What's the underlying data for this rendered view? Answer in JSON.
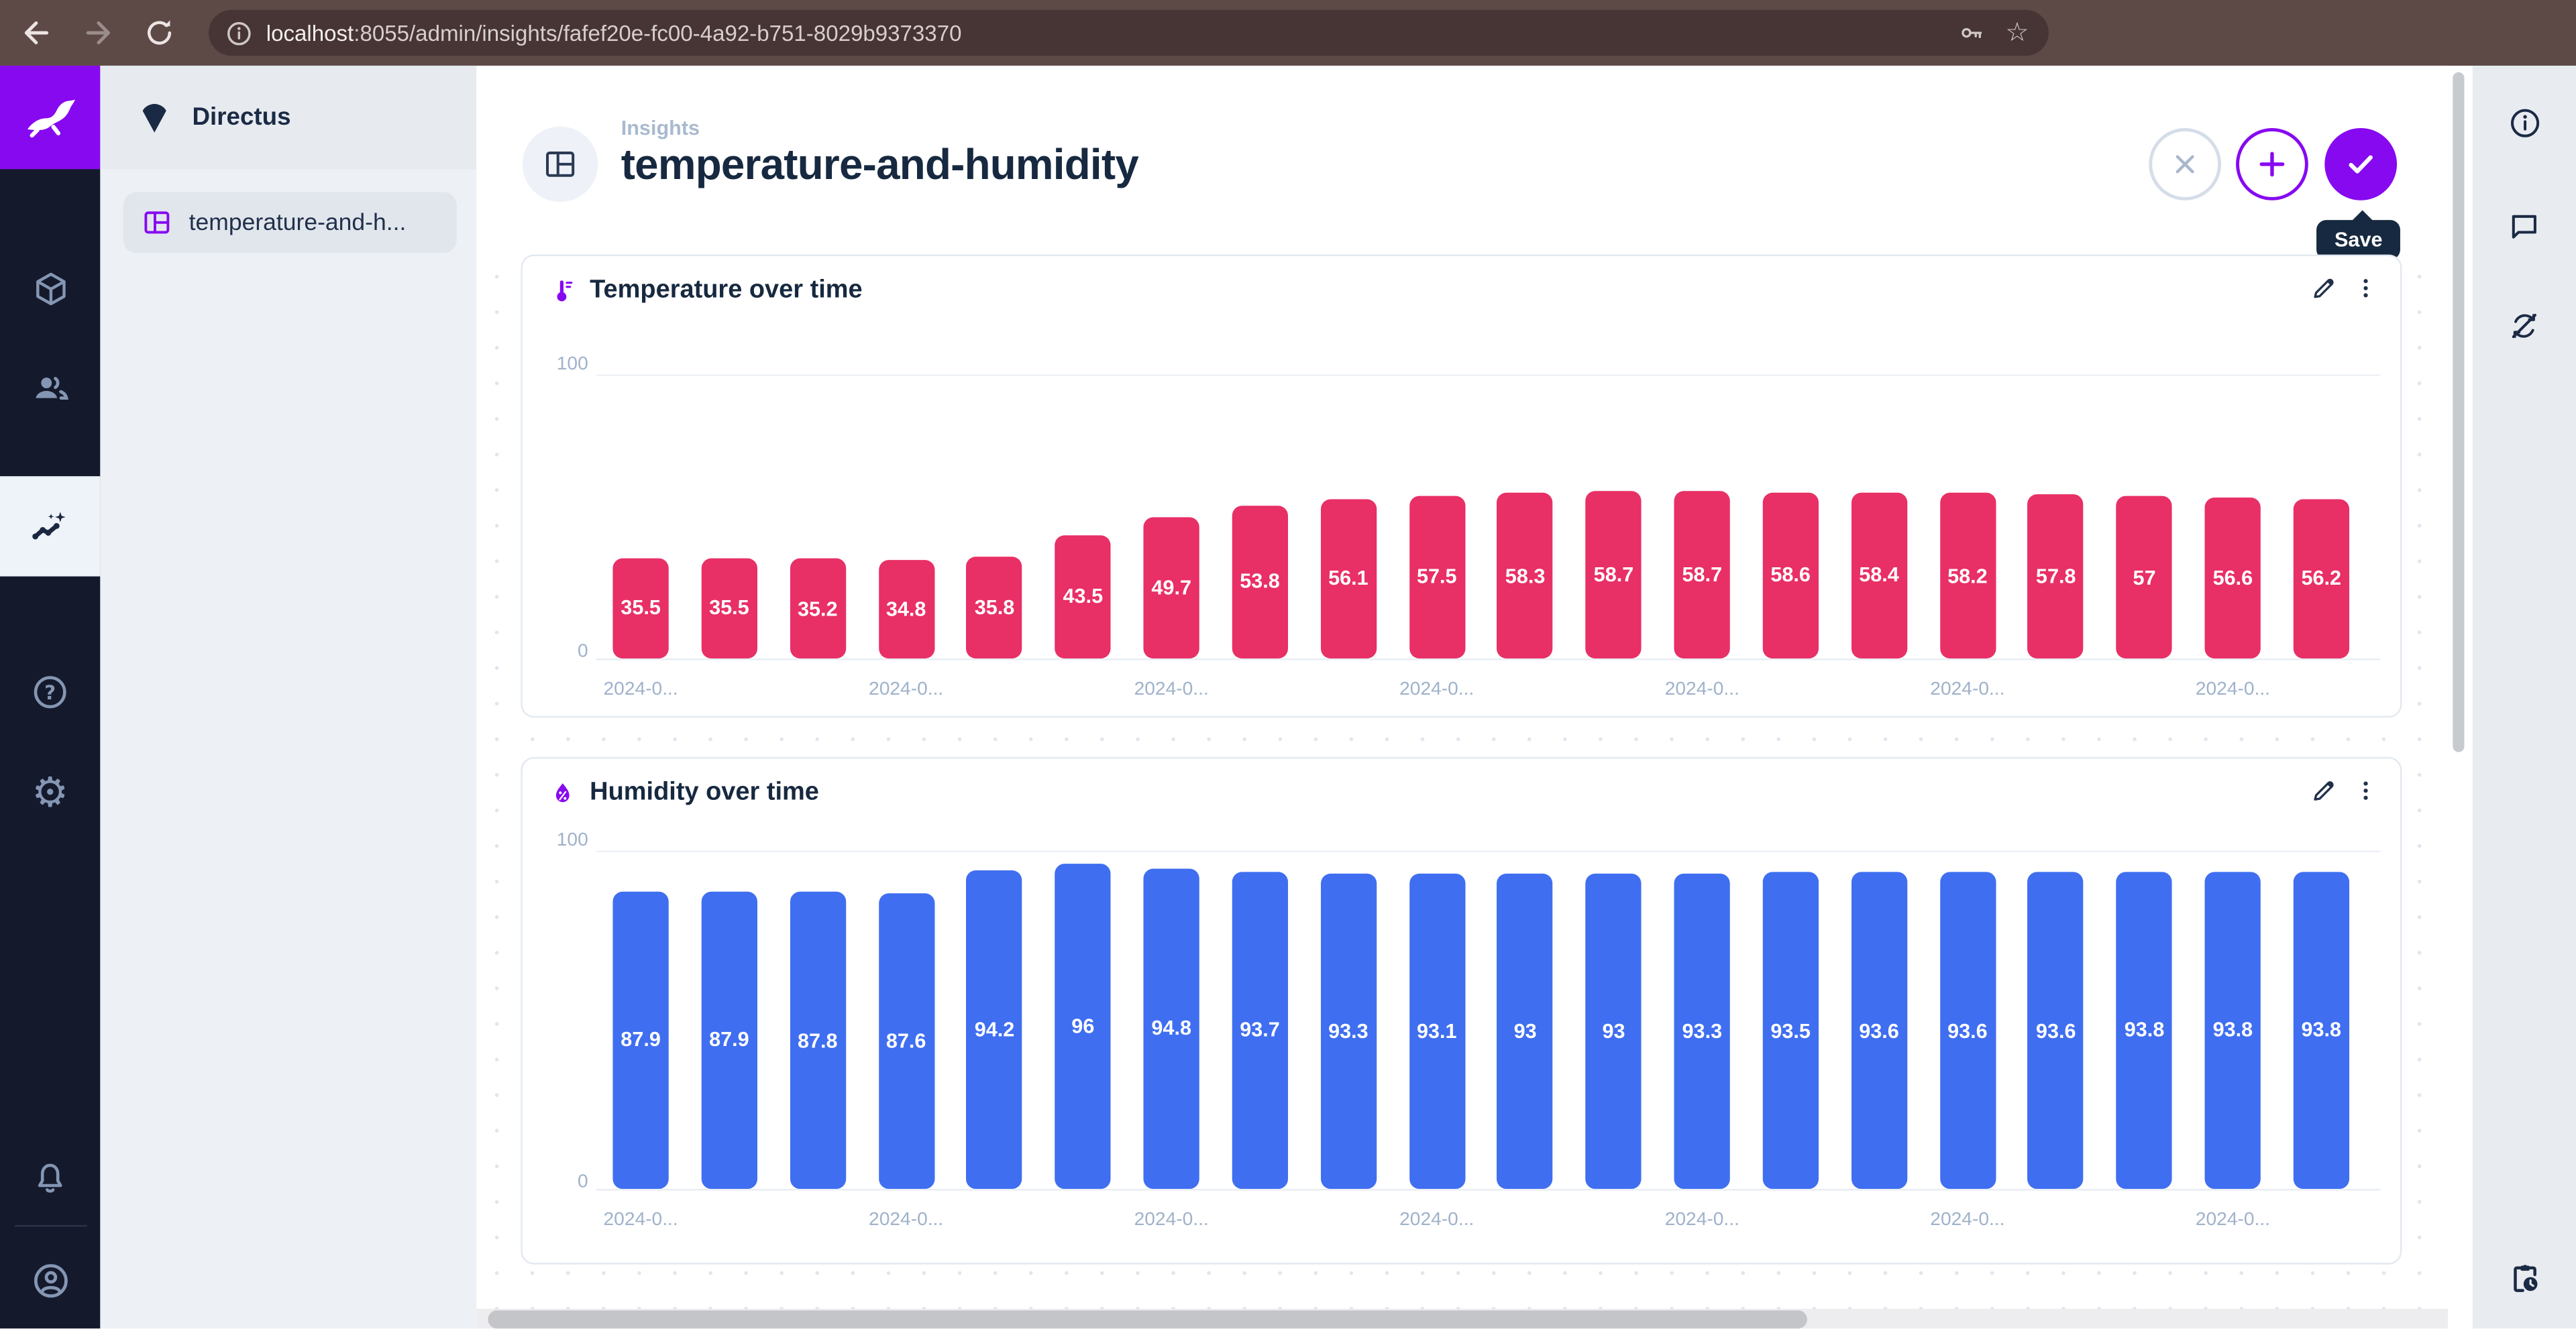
{
  "browser": {
    "url_host": "localhost",
    "url_rest": ":8055/admin/insights/fafef20e-fc00-4a92-b751-8029b9373370",
    "star_glyph": "☆"
  },
  "colors": {
    "accent_purple": "#8709f0",
    "temperature_bar": "#e82f66",
    "humidity_bar": "#3f6ef0",
    "module_bar_bg": "#141a2c",
    "title_text": "#172940"
  },
  "sidebar": {
    "project_name": "Directus",
    "nav_items": [
      {
        "label": "temperature-and-h..."
      }
    ]
  },
  "header": {
    "breadcrumb": "Insights",
    "title": "temperature-and-humidity",
    "save_tooltip": "Save"
  },
  "chart_data": [
    {
      "type": "bar",
      "title": "Temperature over time",
      "icon": "thermometer-icon",
      "ylim": [
        0,
        100
      ],
      "yticks": [
        0,
        100
      ],
      "values": [
        35.5,
        35.5,
        35.2,
        34.8,
        35.8,
        43.5,
        49.7,
        53.8,
        56.1,
        57.5,
        58.3,
        58.7,
        58.7,
        58.6,
        58.4,
        58.2,
        57.8,
        57,
        56.6,
        56.2
      ],
      "bar_color": "#e82f66",
      "value_label_color": "#ffffff",
      "tick_label": "2024-0...",
      "tick_indices": [
        0,
        3,
        6,
        9,
        12,
        15,
        18
      ],
      "legend": false,
      "grid": "top-line-only"
    },
    {
      "type": "bar",
      "title": "Humidity over time",
      "icon": "humidity-icon",
      "ylim": [
        0,
        100
      ],
      "yticks": [
        0,
        100
      ],
      "values": [
        87.9,
        87.9,
        87.8,
        87.6,
        94.2,
        96,
        94.8,
        93.7,
        93.3,
        93.1,
        93,
        93,
        93.3,
        93.5,
        93.6,
        93.6,
        93.6,
        93.8,
        93.8,
        93.8
      ],
      "bar_color": "#3f6ef0",
      "value_label_color": "#ffffff",
      "tick_label": "2024-0...",
      "tick_indices": [
        0,
        3,
        6,
        9,
        12,
        15,
        18
      ],
      "legend": false,
      "grid": "top-line-only"
    }
  ]
}
